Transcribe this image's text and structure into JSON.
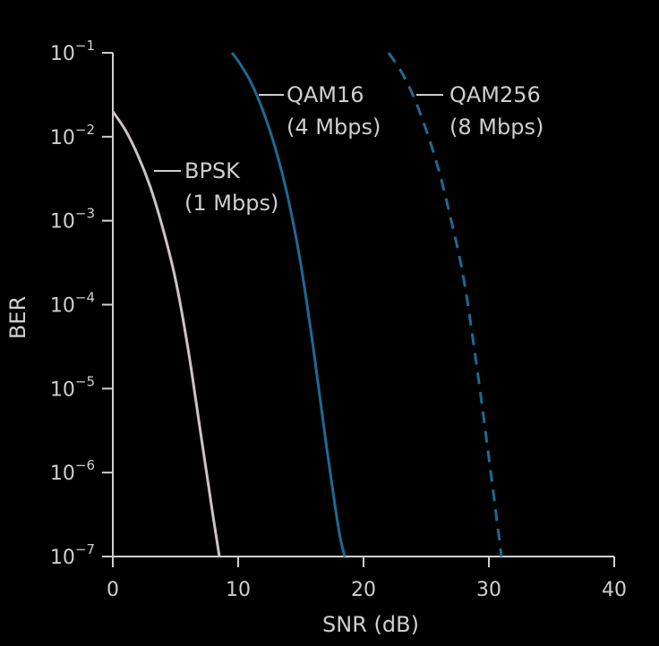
{
  "chart_data": {
    "type": "line",
    "xlabel": "SNR (dB)",
    "ylabel": "BER",
    "xlim": [
      0,
      40
    ],
    "ylim": [
      1e-07,
      0.1
    ],
    "yscale": "log",
    "grid": false,
    "legend": "inline-labels",
    "x_ticks": [
      "0",
      "10",
      "20",
      "30",
      "40"
    ],
    "y_ticks": [
      {
        "mantissa": "10",
        "exponent": "−1"
      },
      {
        "mantissa": "10",
        "exponent": "−2"
      },
      {
        "mantissa": "10",
        "exponent": "−3"
      },
      {
        "mantissa": "10",
        "exponent": "−4"
      },
      {
        "mantissa": "10",
        "exponent": "−5"
      },
      {
        "mantissa": "10",
        "exponent": "−6"
      },
      {
        "mantissa": "10",
        "exponent": "−7"
      }
    ],
    "series": [
      {
        "name": "BPSK",
        "rate": "(1 Mbps)",
        "color": "#cdc5c5",
        "dash": "solid",
        "points": [
          [
            0,
            0.02
          ],
          [
            1,
            0.012
          ],
          [
            2,
            0.006
          ],
          [
            3,
            0.0025
          ],
          [
            4,
            0.0008
          ],
          [
            5,
            0.0002
          ],
          [
            6,
            3e-05
          ],
          [
            7,
            3e-06
          ],
          [
            8,
            3e-07
          ],
          [
            8.5,
            1e-07
          ]
        ]
      },
      {
        "name": "QAM16",
        "rate": "(4 Mbps)",
        "color": "#1e6a92",
        "dash": "solid",
        "points": [
          [
            9.5,
            0.1
          ],
          [
            10,
            0.08
          ],
          [
            11,
            0.045
          ],
          [
            12,
            0.02
          ],
          [
            13,
            0.007
          ],
          [
            14,
            0.0018
          ],
          [
            15,
            0.0003
          ],
          [
            16,
            3e-05
          ],
          [
            17,
            2.3e-06
          ],
          [
            18,
            2.2e-07
          ],
          [
            18.5,
            1e-07
          ]
        ]
      },
      {
        "name": "QAM256",
        "rate": "(8 Mbps)",
        "color": "#1e6a92",
        "dash": "dashed",
        "points": [
          [
            22,
            0.1
          ],
          [
            23,
            0.06
          ],
          [
            24,
            0.03
          ],
          [
            25,
            0.012
          ],
          [
            26,
            0.004
          ],
          [
            27,
            0.001
          ],
          [
            28,
            0.0002
          ],
          [
            29,
            2e-05
          ],
          [
            30,
            1.5e-06
          ],
          [
            31,
            1e-07
          ]
        ]
      }
    ]
  }
}
